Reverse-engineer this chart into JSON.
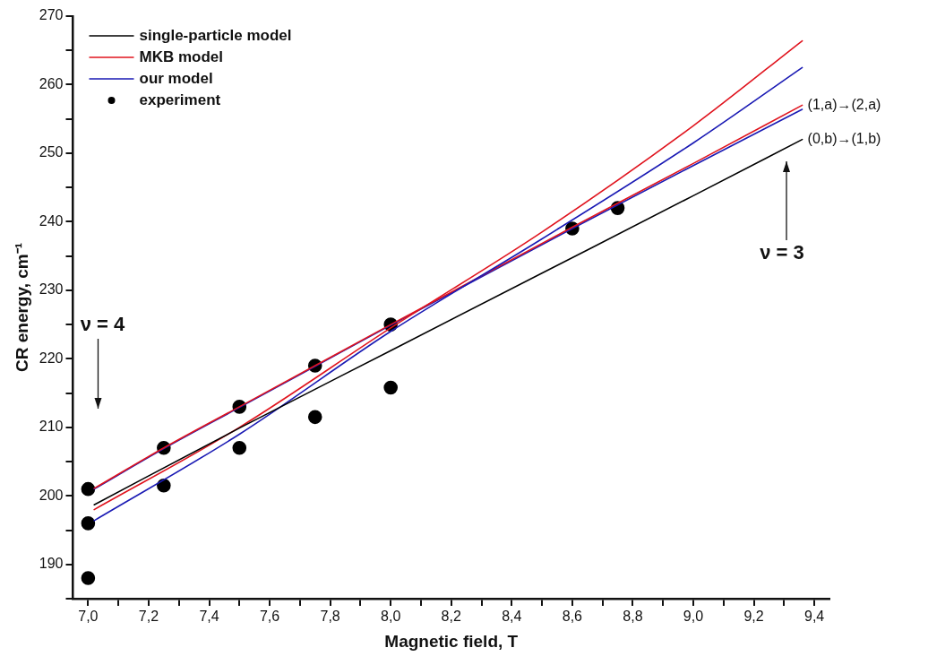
{
  "chart_data": {
    "type": "line",
    "xlabel": "Magnetic field, T",
    "ylabel": "CR energy, cm⁻¹",
    "xlim": [
      6.95,
      9.45
    ],
    "xticks": [
      {
        "value": 7.0,
        "label": "7,0"
      },
      {
        "value": 7.1,
        "label": null
      },
      {
        "value": 7.2,
        "label": "7,2"
      },
      {
        "value": 7.3,
        "label": null
      },
      {
        "value": 7.4,
        "label": "7,4"
      },
      {
        "value": 7.5,
        "label": null
      },
      {
        "value": 7.6,
        "label": "7,6"
      },
      {
        "value": 7.7,
        "label": null
      },
      {
        "value": 7.8,
        "label": "7,8"
      },
      {
        "value": 7.9,
        "label": null
      },
      {
        "value": 8.0,
        "label": "8,0"
      },
      {
        "value": 8.1,
        "label": null
      },
      {
        "value": 8.2,
        "label": "8,2"
      },
      {
        "value": 8.3,
        "label": null
      },
      {
        "value": 8.4,
        "label": "8,4"
      },
      {
        "value": 8.5,
        "label": null
      },
      {
        "value": 8.6,
        "label": "8,6"
      },
      {
        "value": 8.7,
        "label": null
      },
      {
        "value": 8.8,
        "label": "8,8"
      },
      {
        "value": 8.9,
        "label": null
      },
      {
        "value": 9.0,
        "label": "9,0"
      },
      {
        "value": 9.1,
        "label": null
      },
      {
        "value": 9.2,
        "label": "9,2"
      },
      {
        "value": 9.3,
        "label": null
      },
      {
        "value": 9.4,
        "label": "9,4"
      }
    ],
    "ylim": [
      185,
      270
    ],
    "yticks": [
      {
        "value": 185,
        "label": null
      },
      190,
      {
        "value": 195,
        "label": null
      },
      200,
      {
        "value": 205,
        "label": null
      },
      210,
      {
        "value": 215,
        "label": null
      },
      220,
      {
        "value": 225,
        "label": null
      },
      230,
      {
        "value": 235,
        "label": null
      },
      240,
      {
        "value": 245,
        "label": null
      },
      250,
      {
        "value": 255,
        "label": null
      },
      260,
      {
        "value": 265,
        "label": null
      },
      270
    ],
    "grid": false,
    "legend": "top left",
    "line_style": "solid",
    "marker": "none",
    "series": [
      {
        "name": "single-particle model",
        "color": "#000000",
        "x": [
          7.02,
          7.5,
          8.0,
          8.5,
          9.0,
          9.36
        ],
        "values": [
          198.7,
          209.9,
          221.2,
          232.5,
          243.8,
          252
        ]
      },
      {
        "name": "MKB model",
        "color": "#e0141e",
        "x": [
          7.02,
          7.5,
          8.0,
          8.5,
          9.0,
          9.36
        ],
        "values": [
          198,
          210,
          224.5,
          238.5,
          254,
          266.4
        ]
      },
      {
        "name": "our model",
        "color": "#1a1ab4",
        "x": [
          7.02,
          7.5,
          8.0,
          8.5,
          9.0,
          9.36
        ],
        "values": [
          196.4,
          209,
          224,
          237.5,
          251.5,
          262.5
        ]
      },
      {
        "color": "#e0141e",
        "x": [
          7.02,
          7.25,
          7.5,
          7.75,
          8.0,
          8.6,
          9.0,
          9.36
        ],
        "values": [
          201.1,
          207,
          213,
          219,
          225,
          239.2,
          248.5,
          257
        ]
      },
      {
        "color": "#1a1ab4",
        "x": [
          7.02,
          7.25,
          7.5,
          7.75,
          8.0,
          8.6,
          9.0,
          9.36
        ],
        "values": [
          201,
          206.9,
          212.9,
          218.9,
          224.9,
          239,
          248.2,
          256.4
        ]
      },
      {
        "name": "experiment",
        "type": "scatter",
        "marker": "circle",
        "color": "#000000",
        "x": [
          7.0,
          7.0,
          7.0,
          7.25,
          7.25,
          7.5,
          7.5,
          7.75,
          7.75,
          8.0,
          8.0,
          8.6,
          8.75
        ],
        "values": [
          201,
          196,
          188,
          207,
          201.5,
          213,
          207,
          219,
          211.5,
          225,
          215.8,
          239,
          242
        ]
      }
    ],
    "annotations": [
      {
        "text": "(1,a)→(2,a)",
        "x": 9.36,
        "y": 257
      },
      {
        "text": "(0,b)→(1,b)",
        "x": 9.36,
        "y": 252
      },
      "ν = 3",
      "ν = 4"
    ]
  }
}
